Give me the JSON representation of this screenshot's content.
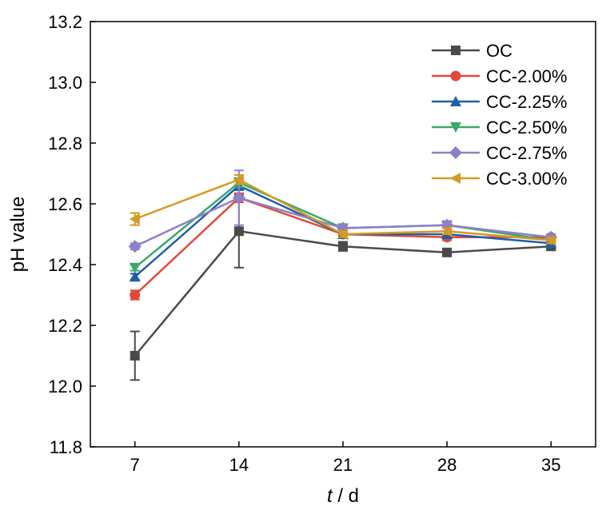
{
  "chart_data": {
    "type": "line",
    "xlabel_italic": "t",
    "xlabel_rest": " / d",
    "ylabel": "pH value",
    "xlim": [
      4,
      38
    ],
    "ylim": [
      11.8,
      13.2
    ],
    "x": [
      7,
      14,
      21,
      28,
      35
    ],
    "x_tick_labels": [
      "7",
      "14",
      "21",
      "28",
      "35"
    ],
    "y_ticks": [
      11.8,
      12.0,
      12.2,
      12.4,
      12.6,
      12.8,
      13.0,
      13.2
    ],
    "y_tick_labels": [
      "11.8",
      "12.0",
      "12.2",
      "12.4",
      "12.6",
      "12.8",
      "13.0",
      "13.2"
    ],
    "grid": false,
    "legend_position": "top-right",
    "series": [
      {
        "name": "OC",
        "color": "#4a4a4a",
        "marker": "square",
        "values": [
          12.1,
          12.51,
          12.46,
          12.44,
          12.46
        ],
        "errors": [
          0.08,
          0.12,
          0.015,
          0.01,
          0.01
        ]
      },
      {
        "name": "CC-2.00%",
        "color": "#e0493a",
        "marker": "circle",
        "values": [
          12.3,
          12.62,
          12.5,
          12.49,
          12.49
        ],
        "errors": [
          0.015,
          0.015,
          0.01,
          0.01,
          0.01
        ]
      },
      {
        "name": "CC-2.25%",
        "color": "#1f5fa8",
        "marker": "triangle-up",
        "values": [
          12.36,
          12.66,
          12.5,
          12.5,
          12.47
        ],
        "errors": [
          0.01,
          0.015,
          0.01,
          0.01,
          0.01
        ]
      },
      {
        "name": "CC-2.50%",
        "color": "#3aa86a",
        "marker": "triangle-down",
        "values": [
          12.39,
          12.67,
          12.52,
          12.53,
          12.48
        ],
        "errors": [
          0.01,
          0.015,
          0.01,
          0.01,
          0.01
        ]
      },
      {
        "name": "CC-2.75%",
        "color": "#8c80c8",
        "marker": "diamond",
        "values": [
          12.46,
          12.62,
          12.52,
          12.53,
          12.49
        ],
        "errors": [
          0.01,
          0.09,
          0.01,
          0.01,
          0.01
        ]
      },
      {
        "name": "CC-3.00%",
        "color": "#d49a24",
        "marker": "triangle-left",
        "values": [
          12.55,
          12.68,
          12.5,
          12.51,
          12.48
        ],
        "errors": [
          0.02,
          0.015,
          0.01,
          0.01,
          0.01
        ]
      }
    ]
  }
}
